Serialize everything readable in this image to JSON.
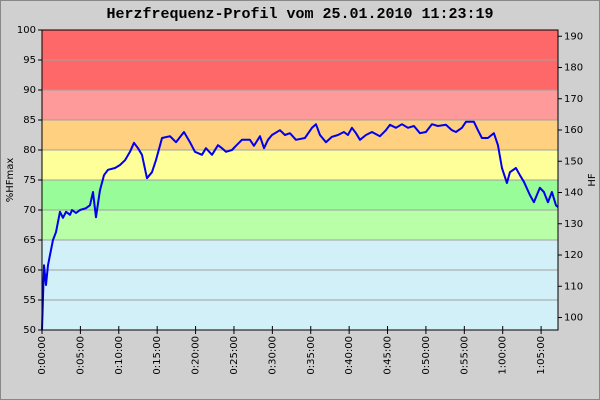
{
  "chart_data": {
    "type": "line",
    "title": "Herzfrequenz-Profil vom 25.01.2010 11:23:19",
    "y_label": "%HFmax",
    "y2_label": "HF",
    "color": "#0000ee",
    "x": [
      0,
      0.26,
      0.52,
      0.78,
      1.04,
      1.43,
      1.82,
      2.34,
      2.73,
      3.13,
      3.65,
      3.91,
      4.43,
      4.95,
      5.73,
      6.25,
      6.64,
      7.03,
      7.55,
      8.07,
      8.59,
      9.51,
      10.16,
      10.81,
      11.46,
      11.98,
      12.5,
      13.02,
      13.67,
      14.32,
      14.84,
      15.63,
      16.67,
      17.45,
      18.49,
      19.27,
      19.92,
      20.83,
      21.35,
      22.14,
      22.92,
      23.44,
      23.96,
      24.74,
      25.26,
      26.04,
      27.08,
      27.6,
      28.39,
      28.91,
      29.43,
      29.95,
      30.99,
      31.64,
      32.29,
      33.07,
      34.24,
      35.16,
      35.68,
      36.2,
      36.98,
      37.76,
      38.54,
      39.32,
      39.84,
      40.36,
      40.89,
      41.41,
      42.19,
      42.97,
      44.01,
      44.79,
      45.31,
      46.09,
      46.88,
      47.66,
      48.44,
      49.22,
      50,
      50.78,
      51.56,
      52.6,
      53.39,
      53.91,
      54.69,
      55.21,
      56.25,
      56.77,
      57.29,
      58.07,
      58.85,
      59.38,
      59.9,
      60.55,
      60.94,
      61.72,
      62.24,
      62.76,
      63.54,
      64.06,
      64.84,
      65.36,
      65.89,
      66.41,
      66.93,
      67.19
    ],
    "values": [
      50,
      60.8,
      57.5,
      60.8,
      62.5,
      65,
      66.3,
      69.7,
      68.7,
      69.7,
      69.2,
      70,
      69.5,
      70,
      70.3,
      70.8,
      73,
      68.8,
      73.3,
      75.8,
      76.7,
      77,
      77.5,
      78.3,
      79.7,
      81.2,
      80.3,
      79.2,
      75.3,
      76.3,
      78.3,
      82,
      82.3,
      81.3,
      83,
      81.3,
      79.7,
      79.2,
      80.3,
      79.2,
      80.8,
      80.3,
      79.7,
      80,
      80.7,
      81.7,
      81.7,
      80.7,
      82.3,
      80.3,
      81.7,
      82.5,
      83.3,
      82.5,
      82.8,
      81.7,
      82,
      83.7,
      84.3,
      82.5,
      81.3,
      82.2,
      82.5,
      83,
      82.5,
      83.7,
      82.8,
      81.7,
      82.5,
      83,
      82.3,
      83.3,
      84.2,
      83.7,
      84.3,
      83.7,
      84,
      82.8,
      83,
      84.3,
      84,
      84.2,
      83.3,
      83,
      83.7,
      84.7,
      84.7,
      83.3,
      82,
      82,
      82.8,
      80.8,
      77,
      74.5,
      76.3,
      77,
      75.8,
      74.7,
      72.5,
      71.3,
      73.7,
      73,
      71.3,
      73,
      70.8,
      70.5
    ],
    "xlim": [
      0,
      67.2
    ],
    "xticks": [
      {
        "value": 0,
        "label": "0:00:00"
      },
      {
        "value": 5,
        "label": "0:05:00"
      },
      {
        "value": 10,
        "label": "0:10:00"
      },
      {
        "value": 15,
        "label": "0:15:00"
      },
      {
        "value": 20,
        "label": "0:20:00"
      },
      {
        "value": 25,
        "label": "0:25:00"
      },
      {
        "value": 30,
        "label": "0:30:00"
      },
      {
        "value": 35,
        "label": "0:35:00"
      },
      {
        "value": 40,
        "label": "0:40:00"
      },
      {
        "value": 45,
        "label": "0:45:00"
      },
      {
        "value": 50,
        "label": "0:50:00"
      },
      {
        "value": 55,
        "label": "0:55:00"
      },
      {
        "value": 60,
        "label": "1:00:00"
      },
      {
        "value": 65,
        "label": "1:05:00"
      }
    ],
    "ylim": [
      50,
      100
    ],
    "yticks": [
      50,
      55,
      60,
      65,
      70,
      75,
      80,
      85,
      90,
      95,
      100
    ],
    "y2lim": [
      96,
      192
    ],
    "y2ticks": [
      100,
      110,
      120,
      130,
      140,
      150,
      160,
      170,
      180,
      190
    ],
    "grid": true,
    "zones": [
      {
        "from": 50,
        "to": 65,
        "color": "#d2f0f8"
      },
      {
        "from": 65,
        "to": 70,
        "color": "#b8ffa8"
      },
      {
        "from": 70,
        "to": 75,
        "color": "#98fc98"
      },
      {
        "from": 75,
        "to": 80,
        "color": "#ffff99"
      },
      {
        "from": 80,
        "to": 85,
        "color": "#ffd080"
      },
      {
        "from": 85,
        "to": 90,
        "color": "#ff9a9a"
      },
      {
        "from": 90,
        "to": 100,
        "color": "#ff6868"
      }
    ]
  }
}
